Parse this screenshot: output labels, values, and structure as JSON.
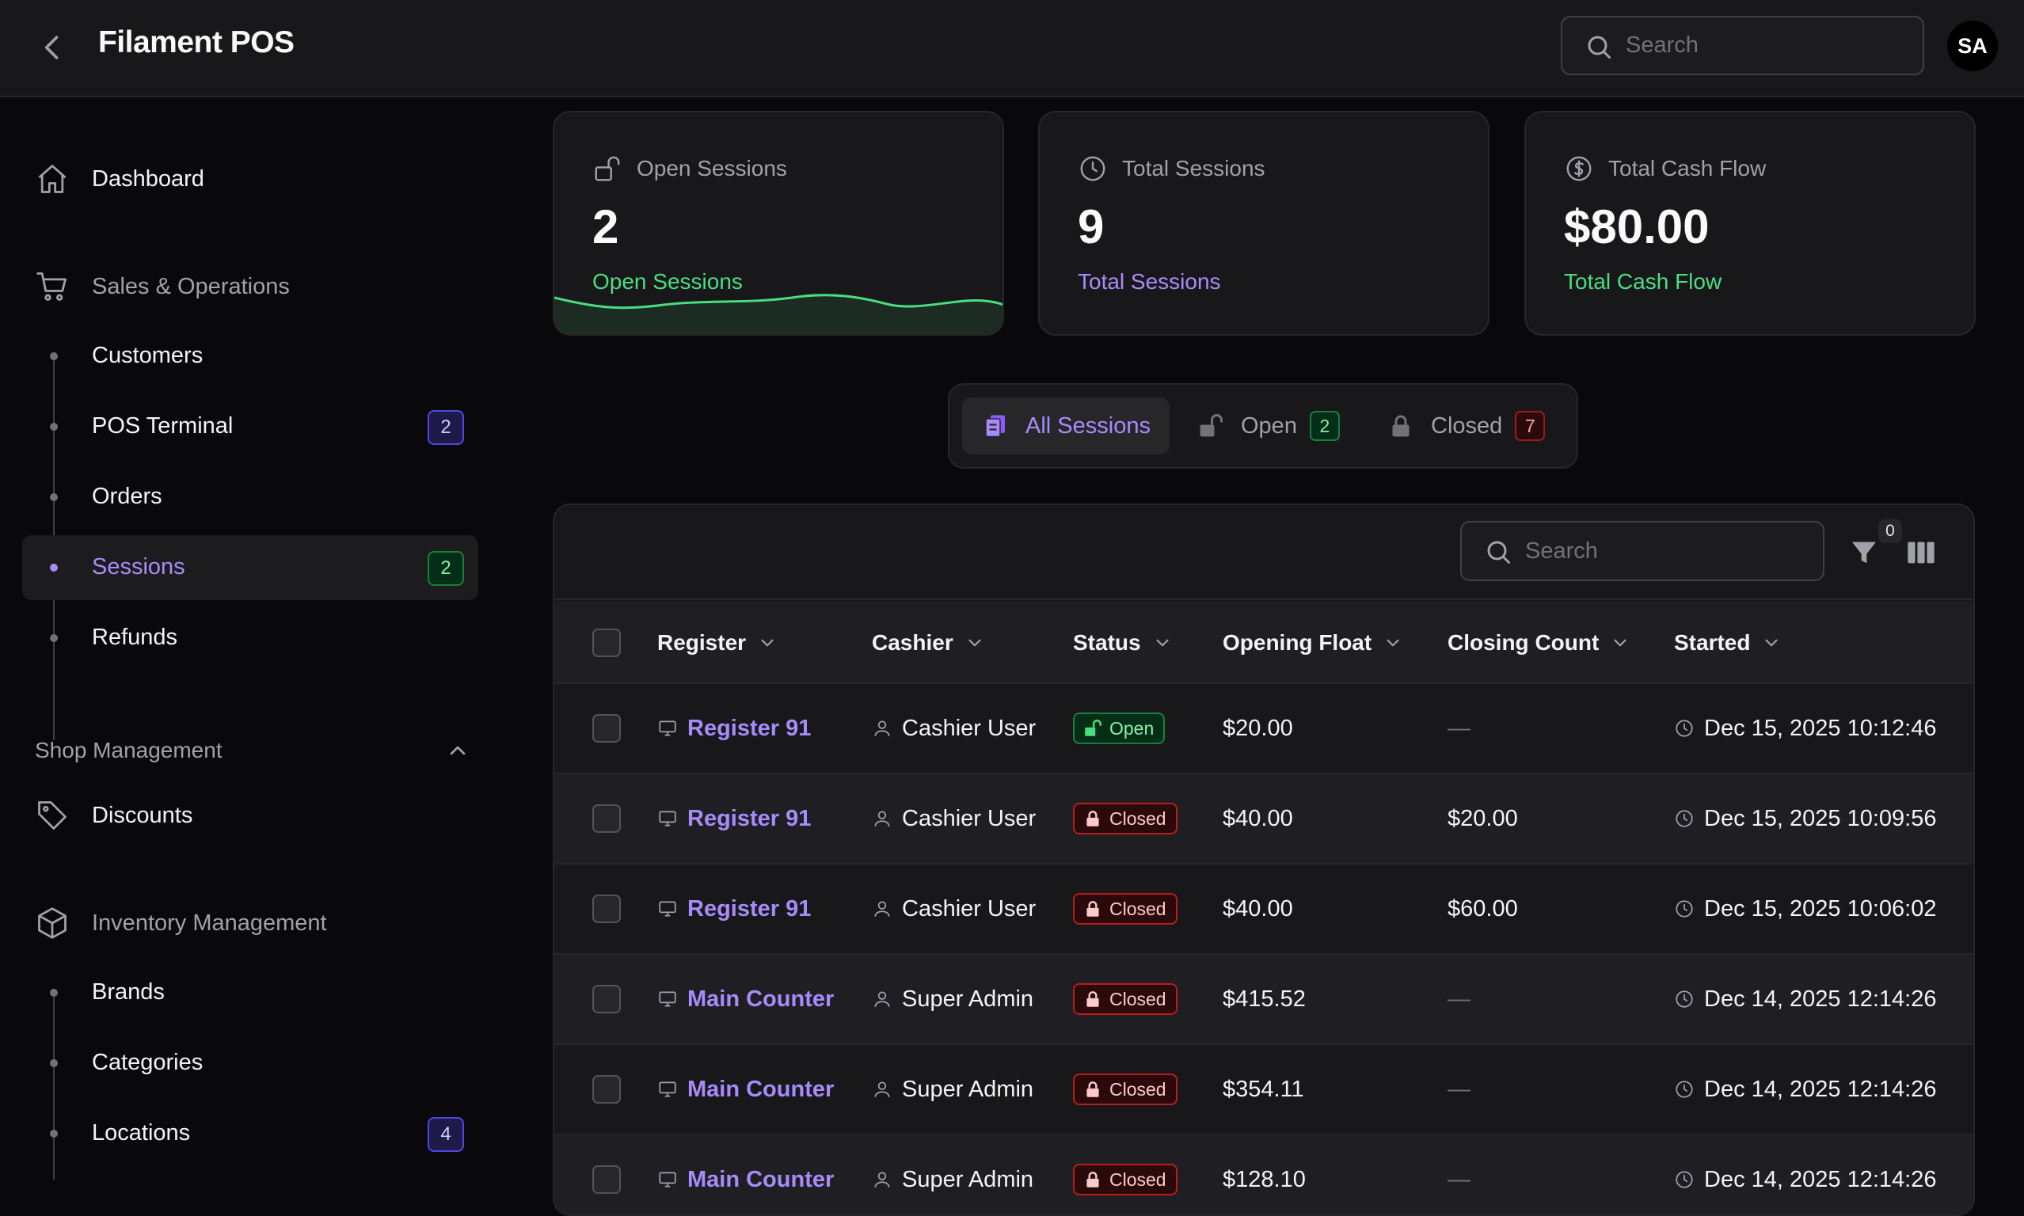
{
  "app": {
    "title": "Filament POS",
    "search_placeholder": "Search",
    "avatar_initials": "SA"
  },
  "sidebar": {
    "dashboard": "Dashboard",
    "sales_group": "Sales & Operations",
    "sales_items": [
      {
        "label": "Customers"
      },
      {
        "label": "POS Terminal",
        "badge": "2"
      },
      {
        "label": "Orders"
      },
      {
        "label": "Sessions",
        "badge": "2",
        "active": true
      },
      {
        "label": "Refunds"
      }
    ],
    "shop_section": "Shop Management",
    "discounts": "Discounts",
    "inventory_group": "Inventory Management",
    "inventory_items": [
      {
        "label": "Brands"
      },
      {
        "label": "Categories"
      },
      {
        "label": "Locations",
        "badge": "4"
      }
    ]
  },
  "stats": [
    {
      "label": "Open Sessions",
      "value": "2",
      "description": "Open Sessions",
      "icon": "lock-open-icon",
      "color": "#4ade80"
    },
    {
      "label": "Total Sessions",
      "value": "9",
      "description": "Total Sessions",
      "icon": "clock-icon",
      "color": "#a78bfa"
    },
    {
      "label": "Total Cash Flow",
      "value": "$80.00",
      "description": "Total Cash Flow",
      "icon": "dollar-circle-icon",
      "color": "#4ade80"
    }
  ],
  "tabs": [
    {
      "label": "All Sessions",
      "active": true
    },
    {
      "label": "Open",
      "badge": "2"
    },
    {
      "label": "Closed",
      "badge": "7"
    }
  ],
  "table": {
    "search_placeholder": "Search",
    "filter_count": "0",
    "columns": [
      "Register",
      "Cashier",
      "Status",
      "Opening Float",
      "Closing Count",
      "Started"
    ],
    "rows": [
      {
        "register": "Register 91",
        "cashier": "Cashier User",
        "status": "Open",
        "opening_float": "$20.00",
        "closing_count": "—",
        "started": "Dec 15, 2025 10:12:46"
      },
      {
        "register": "Register 91",
        "cashier": "Cashier User",
        "status": "Closed",
        "opening_float": "$40.00",
        "closing_count": "$20.00",
        "started": "Dec 15, 2025 10:09:56"
      },
      {
        "register": "Register 91",
        "cashier": "Cashier User",
        "status": "Closed",
        "opening_float": "$40.00",
        "closing_count": "$60.00",
        "started": "Dec 15, 2025 10:06:02"
      },
      {
        "register": "Main Counter",
        "cashier": "Super Admin",
        "status": "Closed",
        "opening_float": "$415.52",
        "closing_count": "—",
        "started": "Dec 14, 2025 12:14:26"
      },
      {
        "register": "Main Counter",
        "cashier": "Super Admin",
        "status": "Closed",
        "opening_float": "$354.11",
        "closing_count": "—",
        "started": "Dec 14, 2025 12:14:26"
      },
      {
        "register": "Main Counter",
        "cashier": "Super Admin",
        "status": "Closed",
        "opening_float": "$128.10",
        "closing_count": "—",
        "started": "Dec 14, 2025 12:14:26"
      }
    ]
  }
}
